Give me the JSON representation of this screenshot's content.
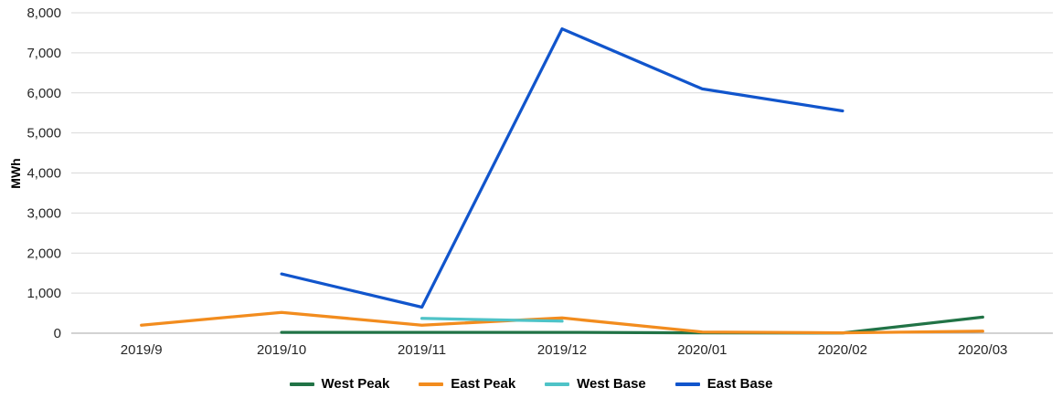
{
  "chart_data": {
    "type": "line",
    "title": "",
    "xlabel": "",
    "ylabel": "MWh",
    "ylim": [
      0,
      8000
    ],
    "ytick_step": 1000,
    "yticks": [
      0,
      1000,
      2000,
      3000,
      4000,
      5000,
      6000,
      7000,
      8000
    ],
    "ytick_labels": [
      "0",
      "1,000",
      "2,000",
      "3,000",
      "4,000",
      "5,000",
      "6,000",
      "7,000",
      "8,000"
    ],
    "categories": [
      "2019/9",
      "2019/10",
      "2019/11",
      "2019/12",
      "2020/01",
      "2020/02",
      "2020/03"
    ],
    "grid": true,
    "legend_position": "bottom",
    "series": [
      {
        "name": "West Peak",
        "color": "#217346",
        "values": [
          null,
          20,
          20,
          20,
          10,
          5,
          400
        ]
      },
      {
        "name": "East Peak",
        "color": "#F28C1E",
        "values": [
          200,
          520,
          200,
          380,
          30,
          10,
          50
        ]
      },
      {
        "name": "West Base",
        "color": "#4FC3C7",
        "values": [
          null,
          null,
          370,
          300,
          null,
          null,
          null
        ]
      },
      {
        "name": "East Base",
        "color": "#1155CC",
        "values": [
          null,
          1480,
          650,
          7600,
          6100,
          5550,
          null
        ]
      }
    ],
    "colors": {
      "gridline": "#d9d9d9",
      "axis_line": "#a6a6a6",
      "tick_text": "#262626"
    }
  }
}
